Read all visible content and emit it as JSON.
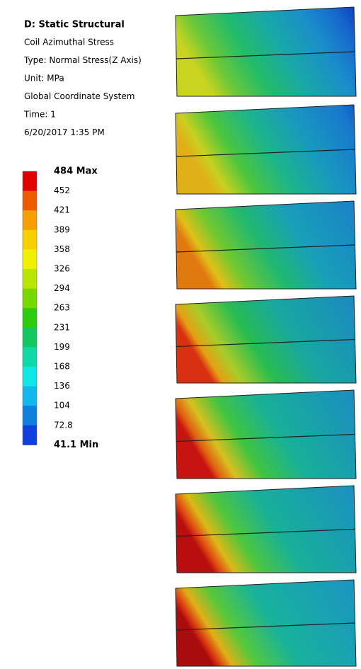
{
  "header": {
    "title": "D: Static Structural",
    "lines": [
      "Coil Azimuthal Stress",
      "Type: Normal Stress(Z Axis)",
      "Unit: MPa",
      "Global Coordinate System",
      "Time: 1",
      "6/20/2017 1:35 PM"
    ]
  },
  "legend": {
    "labels": [
      "484 Max",
      "452",
      "421",
      "389",
      "358",
      "326",
      "294",
      "263",
      "231",
      "199",
      "168",
      "136",
      "104",
      "72.8",
      "41.1 Min"
    ],
    "colors": [
      "#e00000",
      "#f05a00",
      "#f5a000",
      "#f8d000",
      "#f0f000",
      "#b8e600",
      "#78d800",
      "#2ecc10",
      "#10c860",
      "#10d8a8",
      "#10e6e6",
      "#10b8ec",
      "#1080e0",
      "#1040e0"
    ]
  }
}
